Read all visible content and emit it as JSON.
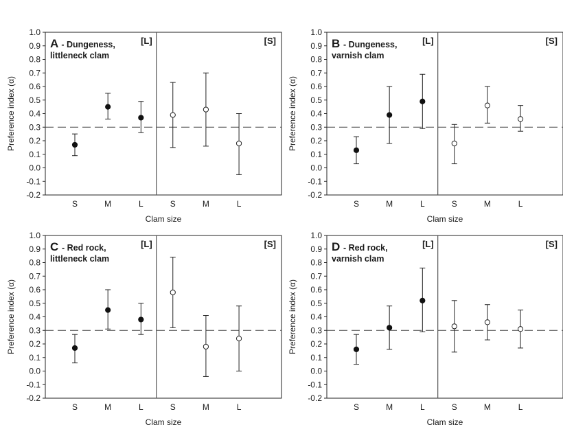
{
  "chart_data": [
    {
      "type": "scatter",
      "letter": "A",
      "title_lines": [
        "- Dungeness,",
        "littleneck clam"
      ],
      "xlabel": "Clam size",
      "ylabel": "Preference index (α)",
      "ylim": [
        -0.2,
        1.0
      ],
      "yticks": [
        "1.0",
        "0.9",
        "0.8",
        "0.7",
        "0.6",
        "0.5",
        "0.4",
        "0.3",
        "0.2",
        "0.1",
        "0.0",
        "-0.1",
        "-0.2"
      ],
      "reference_line": 0.3,
      "groups": [
        {
          "label": "[L]",
          "marker": "filled",
          "categories": [
            "S",
            "M",
            "L"
          ],
          "values": [
            0.17,
            0.45,
            0.37
          ],
          "lower": [
            0.09,
            0.36,
            0.26
          ],
          "upper": [
            0.25,
            0.55,
            0.49
          ]
        },
        {
          "label": "[S]",
          "marker": "open",
          "categories": [
            "S",
            "M",
            "L"
          ],
          "values": [
            0.39,
            0.43,
            0.18
          ],
          "lower": [
            0.15,
            0.16,
            -0.05
          ],
          "upper": [
            0.63,
            0.7,
            0.4
          ]
        }
      ]
    },
    {
      "type": "scatter",
      "letter": "B",
      "title_lines": [
        "- Dungeness,",
        "varnish clam"
      ],
      "xlabel": "Clam size",
      "ylabel": "Preference index (α)",
      "ylim": [
        -0.2,
        1.0
      ],
      "yticks": [
        "1.0",
        "0.9",
        "0.8",
        "0.7",
        "0.6",
        "0.5",
        "0.4",
        "0.3",
        "0.2",
        "0.1",
        "0.0",
        "-0.1",
        "-0.2"
      ],
      "reference_line": 0.3,
      "groups": [
        {
          "label": "[L]",
          "marker": "filled",
          "categories": [
            "S",
            "M",
            "L"
          ],
          "values": [
            0.13,
            0.39,
            0.49
          ],
          "lower": [
            0.03,
            0.18,
            0.29
          ],
          "upper": [
            0.23,
            0.6,
            0.69
          ]
        },
        {
          "label": "[S]",
          "marker": "open",
          "categories": [
            "S",
            "M",
            "L"
          ],
          "values": [
            0.18,
            0.46,
            0.36
          ],
          "lower": [
            0.03,
            0.33,
            0.27
          ],
          "upper": [
            0.32,
            0.6,
            0.46
          ]
        }
      ]
    },
    {
      "type": "scatter",
      "letter": "C",
      "title_lines": [
        "- Red rock,",
        "littleneck clam"
      ],
      "xlabel": "Clam size",
      "ylabel": "Preference index (α)",
      "ylim": [
        -0.2,
        1.0
      ],
      "yticks": [
        "1.0",
        "0.9",
        "0.8",
        "0.7",
        "0.6",
        "0.5",
        "0.4",
        "0.3",
        "0.2",
        "0.1",
        "0.0",
        "-0.1",
        "-0.2"
      ],
      "reference_line": 0.3,
      "groups": [
        {
          "label": "[L]",
          "marker": "filled",
          "categories": [
            "S",
            "M",
            "L"
          ],
          "values": [
            0.17,
            0.45,
            0.38
          ],
          "lower": [
            0.06,
            0.31,
            0.27
          ],
          "upper": [
            0.27,
            0.6,
            0.5
          ]
        },
        {
          "label": "[S]",
          "marker": "open",
          "categories": [
            "S",
            "M",
            "L"
          ],
          "values": [
            0.58,
            0.18,
            0.24
          ],
          "lower": [
            0.32,
            -0.04,
            0.0
          ],
          "upper": [
            0.84,
            0.41,
            0.48
          ]
        }
      ]
    },
    {
      "type": "scatter",
      "letter": "D",
      "title_lines": [
        "- Red rock,",
        "varnish clam"
      ],
      "xlabel": "Clam size",
      "ylabel": "Preference index (α)",
      "ylim": [
        -0.2,
        1.0
      ],
      "yticks": [
        "1.0",
        "0.9",
        "0.8",
        "0.7",
        "0.6",
        "0.5",
        "0.4",
        "0.3",
        "0.2",
        "0.1",
        "0.0",
        "-0.1",
        "-0.2"
      ],
      "reference_line": 0.3,
      "groups": [
        {
          "label": "[L]",
          "marker": "filled",
          "categories": [
            "S",
            "M",
            "L"
          ],
          "values": [
            0.16,
            0.32,
            0.52
          ],
          "lower": [
            0.05,
            0.16,
            0.29
          ],
          "upper": [
            0.27,
            0.48,
            0.76
          ]
        },
        {
          "label": "[S]",
          "marker": "open",
          "categories": [
            "S",
            "M",
            "L"
          ],
          "values": [
            0.33,
            0.36,
            0.31
          ],
          "lower": [
            0.14,
            0.23,
            0.17
          ],
          "upper": [
            0.52,
            0.49,
            0.45
          ]
        }
      ]
    }
  ]
}
